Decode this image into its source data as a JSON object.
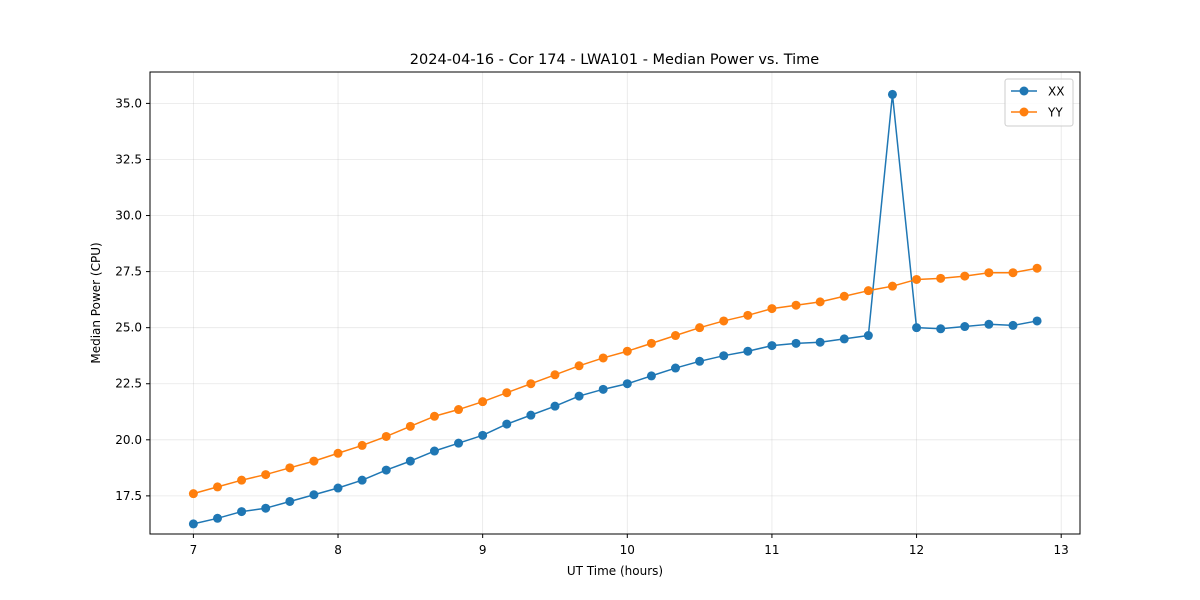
{
  "chart_data": {
    "type": "line",
    "title": "2024-04-16 - Cor 174 - LWA101 - Median Power vs. Time",
    "xlabel": "UT Time (hours)",
    "ylabel": "Median Power (CPU)",
    "xlim": [
      6.7,
      13.13
    ],
    "ylim": [
      15.8,
      36.4
    ],
    "xticks": [
      7,
      8,
      9,
      10,
      11,
      12,
      13
    ],
    "xtick_labels": [
      "7",
      "8",
      "9",
      "10",
      "11",
      "12",
      "13"
    ],
    "yticks": [
      17.5,
      20.0,
      22.5,
      25.0,
      27.5,
      30.0,
      32.5,
      35.0
    ],
    "ytick_labels": [
      "17.5",
      "20.0",
      "22.5",
      "25.0",
      "27.5",
      "30.0",
      "32.5",
      "35.0"
    ],
    "grid": true,
    "legend_position": "top-right",
    "x": [
      7.0,
      7.1667,
      7.3333,
      7.5,
      7.6667,
      7.8333,
      8.0,
      8.1667,
      8.3333,
      8.5,
      8.6667,
      8.8333,
      9.0,
      9.1667,
      9.3333,
      9.5,
      9.6667,
      9.8333,
      10.0,
      10.1667,
      10.3333,
      10.5,
      10.6667,
      10.8333,
      11.0,
      11.1667,
      11.3333,
      11.5,
      11.6667,
      11.8333,
      12.0,
      12.1667,
      12.3333,
      12.5,
      12.6667,
      12.8333
    ],
    "series": [
      {
        "name": "XX",
        "color": "#1f77b4",
        "values": [
          16.25,
          16.5,
          16.8,
          16.95,
          17.25,
          17.55,
          17.85,
          18.2,
          18.65,
          19.05,
          19.5,
          19.85,
          20.2,
          20.7,
          21.1,
          21.5,
          21.95,
          22.25,
          22.5,
          22.85,
          23.2,
          23.5,
          23.75,
          23.95,
          24.2,
          24.3,
          24.35,
          24.5,
          24.65,
          35.4,
          25.0,
          24.95,
          25.05,
          25.15,
          25.1,
          25.3
        ]
      },
      {
        "name": "YY",
        "color": "#ff7f0e",
        "values": [
          17.6,
          17.9,
          18.2,
          18.45,
          18.75,
          19.05,
          19.4,
          19.75,
          20.15,
          20.6,
          21.05,
          21.35,
          21.7,
          22.1,
          22.5,
          22.9,
          23.3,
          23.65,
          23.95,
          24.3,
          24.65,
          25.0,
          25.3,
          25.55,
          25.85,
          26.0,
          26.15,
          26.4,
          26.65,
          26.85,
          27.15,
          27.2,
          27.3,
          27.45,
          27.45,
          27.65
        ]
      }
    ]
  }
}
